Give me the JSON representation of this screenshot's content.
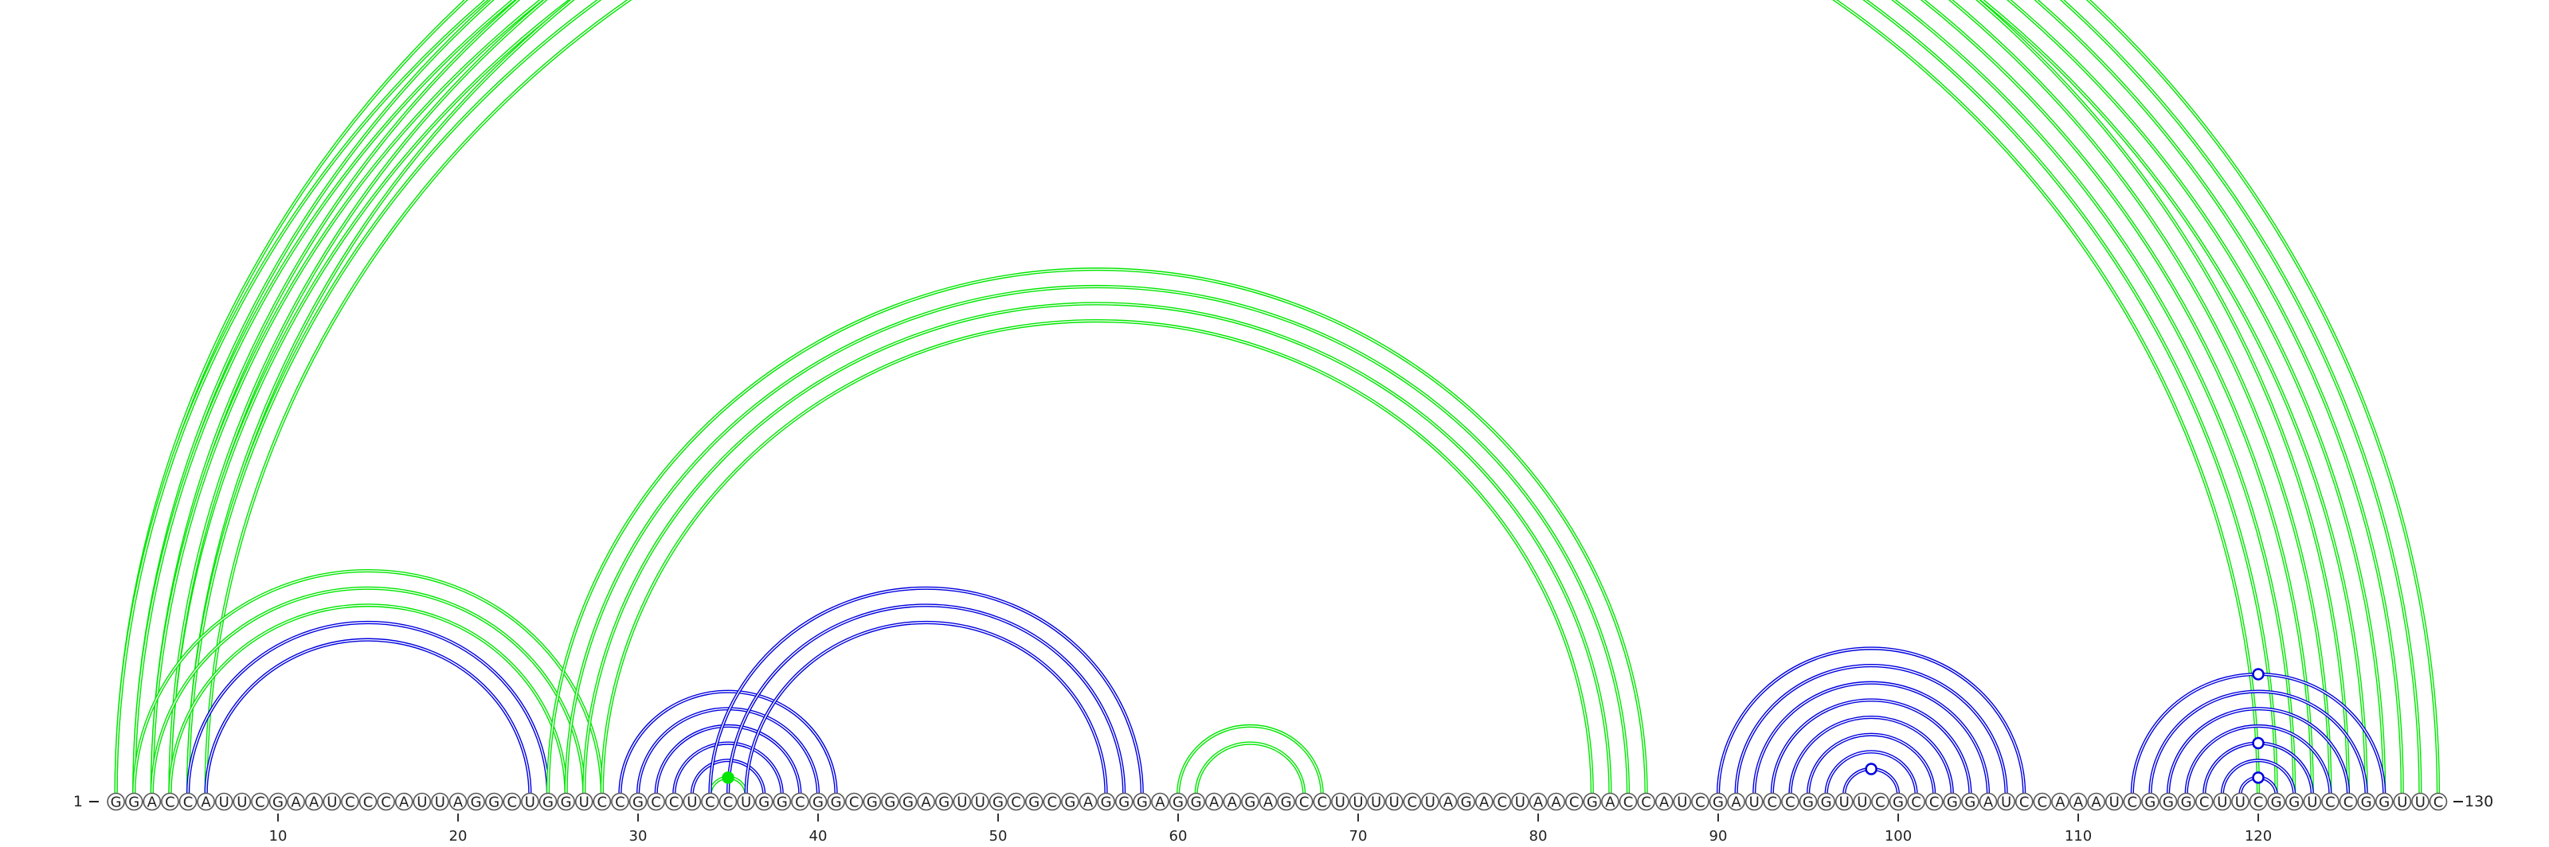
{
  "diagram": {
    "sequence": "GGACCAUUCGAAUCCCAUUAGGCUGGUCCGCCUCCUGGCGGCGGGAGUUGCGCGAGGGAGGAAGAGCCUUUUCUAGACUAACGACCAUCGAUCCGGUUCGCCGGAUCCAAAUCGGGCUUCGGUCCGGUUC",
    "start_label": "1",
    "end_label": "130",
    "ticks": [
      {
        "pos": 10,
        "label": "10"
      },
      {
        "pos": 20,
        "label": "20"
      },
      {
        "pos": 30,
        "label": "30"
      },
      {
        "pos": 40,
        "label": "40"
      },
      {
        "pos": 50,
        "label": "50"
      },
      {
        "pos": 60,
        "label": "60"
      },
      {
        "pos": 70,
        "label": "70"
      },
      {
        "pos": 80,
        "label": "80"
      },
      {
        "pos": 90,
        "label": "90"
      },
      {
        "pos": 100,
        "label": "100"
      },
      {
        "pos": 110,
        "label": "110"
      },
      {
        "pos": 120,
        "label": "120"
      }
    ],
    "colors": {
      "green": "#00e600",
      "blue": "#0000e0"
    },
    "arcs": [
      {
        "i": 1,
        "j": 130,
        "color": "green"
      },
      {
        "i": 2,
        "j": 129,
        "color": "green"
      },
      {
        "i": 3,
        "j": 128,
        "color": "green"
      },
      {
        "i": 1,
        "j": 125,
        "color": "green"
      },
      {
        "i": 2,
        "j": 124,
        "color": "green"
      },
      {
        "i": 3,
        "j": 123,
        "color": "green"
      },
      {
        "i": 4,
        "j": 122,
        "color": "green"
      },
      {
        "i": 4,
        "j": 127,
        "color": "green"
      },
      {
        "i": 5,
        "j": 126,
        "color": "green"
      },
      {
        "i": 5,
        "j": 121,
        "color": "green"
      },
      {
        "i": 6,
        "j": 120,
        "color": "green"
      },
      {
        "i": 2,
        "j": 28,
        "color": "green"
      },
      {
        "i": 3,
        "j": 27,
        "color": "green"
      },
      {
        "i": 4,
        "j": 26,
        "color": "green"
      },
      {
        "i": 5,
        "j": 25,
        "color": "blue"
      },
      {
        "i": 6,
        "j": 24,
        "color": "blue"
      },
      {
        "i": 25,
        "j": 86,
        "color": "green"
      },
      {
        "i": 26,
        "j": 85,
        "color": "green"
      },
      {
        "i": 27,
        "j": 84,
        "color": "green"
      },
      {
        "i": 28,
        "j": 83,
        "color": "green"
      },
      {
        "i": 29,
        "j": 41,
        "color": "blue"
      },
      {
        "i": 30,
        "j": 40,
        "color": "blue"
      },
      {
        "i": 31,
        "j": 39,
        "color": "blue"
      },
      {
        "i": 32,
        "j": 38,
        "color": "blue"
      },
      {
        "i": 33,
        "j": 37,
        "color": "blue"
      },
      {
        "i": 34,
        "j": 36,
        "color": "green"
      },
      {
        "i": 34,
        "j": 58,
        "color": "blue"
      },
      {
        "i": 35,
        "j": 57,
        "color": "blue"
      },
      {
        "i": 36,
        "j": 56,
        "color": "blue"
      },
      {
        "i": 60,
        "j": 68,
        "color": "green"
      },
      {
        "i": 61,
        "j": 67,
        "color": "green"
      },
      {
        "i": 90,
        "j": 107,
        "color": "blue"
      },
      {
        "i": 91,
        "j": 106,
        "color": "blue"
      },
      {
        "i": 92,
        "j": 105,
        "color": "blue"
      },
      {
        "i": 93,
        "j": 104,
        "color": "blue"
      },
      {
        "i": 94,
        "j": 103,
        "color": "blue"
      },
      {
        "i": 95,
        "j": 102,
        "color": "blue"
      },
      {
        "i": 96,
        "j": 101,
        "color": "blue"
      },
      {
        "i": 97,
        "j": 100,
        "color": "blue"
      },
      {
        "i": 113,
        "j": 127,
        "color": "blue"
      },
      {
        "i": 114,
        "j": 126,
        "color": "blue"
      },
      {
        "i": 115,
        "j": 125,
        "color": "blue"
      },
      {
        "i": 116,
        "j": 124,
        "color": "blue"
      },
      {
        "i": 117,
        "j": 123,
        "color": "blue"
      },
      {
        "i": 118,
        "j": 122,
        "color": "blue"
      },
      {
        "i": 119,
        "j": 121,
        "color": "blue"
      }
    ],
    "markers": [
      {
        "i": 1,
        "j": 130,
        "color": "green",
        "filled": false
      },
      {
        "i": 34,
        "j": 36,
        "color": "green",
        "filled": true
      },
      {
        "i": 97,
        "j": 100,
        "color": "blue",
        "filled": false
      },
      {
        "i": 119,
        "j": 121,
        "color": "blue",
        "filled": false
      },
      {
        "i": 117,
        "j": 123,
        "color": "blue",
        "filled": false
      },
      {
        "i": 113,
        "j": 127,
        "color": "blue",
        "filled": false
      }
    ]
  }
}
